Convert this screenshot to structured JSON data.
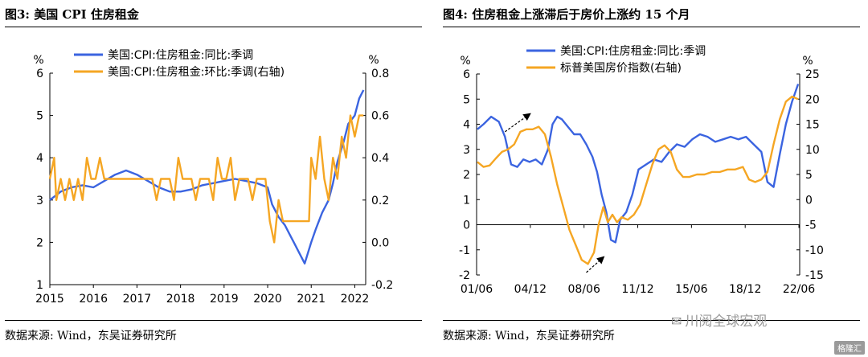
{
  "left": {
    "title": "图3: 美国 CPI 住房租金",
    "source": "数据来源: Wind，东吴证券研究所",
    "chart_data": {
      "type": "line",
      "left_unit": "%",
      "right_unit": "%",
      "x_ticks": [
        "2015",
        "2016",
        "2017",
        "2018",
        "2019",
        "2020",
        "2021",
        "2022"
      ],
      "x_range": [
        2015,
        2022.25
      ],
      "left_ylim": [
        1,
        6
      ],
      "left_ticks": [
        "1",
        "2",
        "3",
        "4",
        "5",
        "6"
      ],
      "right_ylim": [
        -0.2,
        0.8
      ],
      "right_ticks": [
        "-0.2",
        "0.0",
        "0.2",
        "0.4",
        "0.6",
        "0.8"
      ],
      "series": [
        {
          "name": "美国:CPI:住房租金:同比:季调",
          "axis": "left",
          "color": "#3b64e0",
          "x": [
            2015,
            2015.25,
            2015.5,
            2015.75,
            2016,
            2016.25,
            2016.5,
            2016.75,
            2017,
            2017.25,
            2017.5,
            2017.75,
            2018,
            2018.25,
            2018.5,
            2018.75,
            2019,
            2019.25,
            2019.5,
            2019.75,
            2020,
            2020.1,
            2020.25,
            2020.4,
            2020.5,
            2020.6,
            2020.75,
            2020.85,
            2021,
            2021.1,
            2021.25,
            2021.4,
            2021.5,
            2021.6,
            2021.75,
            2021.85,
            2022,
            2022.1,
            2022.2
          ],
          "y": [
            3.0,
            3.2,
            3.3,
            3.35,
            3.3,
            3.45,
            3.6,
            3.7,
            3.6,
            3.45,
            3.3,
            3.2,
            3.2,
            3.25,
            3.35,
            3.4,
            3.45,
            3.5,
            3.45,
            3.4,
            3.3,
            2.9,
            2.6,
            2.4,
            2.2,
            2.0,
            1.7,
            1.5,
            2.0,
            2.3,
            2.7,
            3.0,
            3.4,
            3.9,
            4.4,
            4.8,
            5.0,
            5.4,
            5.6
          ]
        },
        {
          "name": "美国:CPI:住房租金:环比:季调(右轴)",
          "axis": "right",
          "color": "#f5a623",
          "x": [
            2015,
            2015.1,
            2015.15,
            2015.25,
            2015.35,
            2015.45,
            2015.55,
            2015.65,
            2015.75,
            2015.85,
            2015.95,
            2016.05,
            2016.15,
            2016.25,
            2016.35,
            2016.45,
            2016.55,
            2016.65,
            2016.75,
            2016.85,
            2016.95,
            2017.05,
            2017.15,
            2017.25,
            2017.35,
            2017.45,
            2017.55,
            2017.65,
            2017.75,
            2017.85,
            2017.95,
            2018.05,
            2018.15,
            2018.25,
            2018.35,
            2018.45,
            2018.55,
            2018.65,
            2018.75,
            2018.85,
            2018.95,
            2019.05,
            2019.15,
            2019.25,
            2019.35,
            2019.45,
            2019.55,
            2019.65,
            2019.75,
            2019.85,
            2019.95,
            2020.05,
            2020.15,
            2020.25,
            2020.35,
            2020.45,
            2020.55,
            2020.7,
            2020.85,
            2020.95,
            2021.0,
            2021.1,
            2021.2,
            2021.3,
            2021.4,
            2021.5,
            2021.6,
            2021.7,
            2021.8,
            2021.9,
            2022.0,
            2022.1,
            2022.2
          ],
          "y": [
            0.3,
            0.4,
            0.2,
            0.3,
            0.2,
            0.3,
            0.2,
            0.3,
            0.2,
            0.4,
            0.3,
            0.3,
            0.4,
            0.3,
            0.3,
            0.3,
            0.3,
            0.3,
            0.3,
            0.3,
            0.3,
            0.3,
            0.3,
            0.3,
            0.3,
            0.2,
            0.3,
            0.3,
            0.3,
            0.2,
            0.4,
            0.3,
            0.3,
            0.3,
            0.2,
            0.3,
            0.3,
            0.3,
            0.2,
            0.4,
            0.3,
            0.3,
            0.4,
            0.2,
            0.3,
            0.3,
            0.3,
            0.2,
            0.3,
            0.3,
            0.3,
            0.1,
            0.0,
            0.2,
            0.1,
            0.1,
            0.1,
            0.1,
            0.1,
            0.1,
            0.4,
            0.3,
            0.5,
            0.3,
            0.2,
            0.4,
            0.3,
            0.5,
            0.4,
            0.6,
            0.5,
            0.6,
            0.6
          ]
        }
      ]
    }
  },
  "right": {
    "title": "图4: 住房租金上涨滞后于房价上涨约 15 个月",
    "source": "数据来源: Wind，东吴证券研究所",
    "chart_data": {
      "type": "line",
      "left_unit": "%",
      "right_unit": "%",
      "x_ticks": [
        "01/06",
        "04/12",
        "08/06",
        "11/12",
        "15/06",
        "18/12",
        "22/06"
      ],
      "x_tick_pos": [
        2001.45,
        2004.95,
        2008.45,
        2011.95,
        2015.45,
        2018.95,
        2022.45
      ],
      "x_range": [
        2001.45,
        2022.5
      ],
      "left_ylim": [
        -2,
        6
      ],
      "left_ticks": [
        "-2",
        "-1",
        "0",
        "1",
        "2",
        "3",
        "4",
        "5",
        "6"
      ],
      "right_ylim": [
        -15,
        25
      ],
      "right_ticks": [
        "-15",
        "-10",
        "-5",
        "0",
        "5",
        "10",
        "15",
        "20",
        "25"
      ],
      "series": [
        {
          "name": "美国:CPI:住房租金:同比:季调",
          "axis": "left",
          "color": "#3b64e0",
          "x": [
            2001.5,
            2001.9,
            2002.4,
            2002.9,
            2003.3,
            2003.7,
            2004.1,
            2004.5,
            2004.9,
            2005.3,
            2005.7,
            2006.1,
            2006.4,
            2006.7,
            2007.0,
            2007.4,
            2007.8,
            2008.2,
            2008.6,
            2009.0,
            2009.3,
            2009.6,
            2009.9,
            2010.2,
            2010.5,
            2010.8,
            2011.2,
            2011.6,
            2012.0,
            2012.5,
            2013.0,
            2013.5,
            2014.0,
            2014.5,
            2015.0,
            2015.5,
            2016.0,
            2016.5,
            2017.0,
            2017.5,
            2018.0,
            2018.5,
            2019.0,
            2019.5,
            2020.0,
            2020.4,
            2020.8,
            2021.2,
            2021.6,
            2022.0,
            2022.4
          ],
          "y": [
            3.8,
            4.0,
            4.3,
            4.1,
            3.5,
            2.4,
            2.3,
            2.6,
            2.5,
            2.6,
            2.4,
            3.0,
            4.0,
            4.3,
            4.2,
            3.9,
            3.6,
            3.6,
            3.2,
            2.7,
            2.1,
            1.2,
            0.5,
            -0.6,
            -0.7,
            0.2,
            0.5,
            1.2,
            2.2,
            2.4,
            2.6,
            2.5,
            2.9,
            3.2,
            3.1,
            3.4,
            3.6,
            3.5,
            3.3,
            3.4,
            3.5,
            3.4,
            3.5,
            3.2,
            2.9,
            1.7,
            1.5,
            2.8,
            4.0,
            4.9,
            5.6
          ]
        },
        {
          "name": "标普美国房价指数(右轴)",
          "axis": "right",
          "color": "#f5a623",
          "x": [
            2001.5,
            2001.9,
            2002.3,
            2002.7,
            2003.1,
            2003.5,
            2003.9,
            2004.3,
            2004.7,
            2005.1,
            2005.5,
            2005.9,
            2006.3,
            2006.7,
            2007.1,
            2007.5,
            2007.9,
            2008.3,
            2008.7,
            2009.1,
            2009.4,
            2009.7,
            2010.0,
            2010.3,
            2010.6,
            2010.9,
            2011.3,
            2011.7,
            2012.1,
            2012.5,
            2012.9,
            2013.3,
            2013.7,
            2014.1,
            2014.5,
            2014.9,
            2015.3,
            2015.8,
            2016.3,
            2016.8,
            2017.3,
            2017.8,
            2018.3,
            2018.8,
            2019.2,
            2019.6,
            2020.0,
            2020.4,
            2020.8,
            2021.2,
            2021.6,
            2022.0,
            2022.4
          ],
          "y": [
            7.5,
            6.5,
            6.8,
            8.2,
            9.5,
            10.0,
            11.0,
            13.5,
            14.0,
            14.0,
            14.5,
            13.0,
            8.5,
            3.0,
            -1.5,
            -6.0,
            -9.0,
            -12.0,
            -12.8,
            -10.5,
            -5.0,
            -1.5,
            -4.5,
            -3.0,
            -4.5,
            -3.5,
            -4.0,
            -3.0,
            -1.0,
            3.0,
            7.0,
            10.0,
            10.8,
            9.5,
            6.0,
            4.5,
            4.5,
            5.0,
            5.0,
            5.5,
            5.5,
            6.0,
            6.0,
            6.5,
            4.0,
            3.5,
            4.0,
            5.5,
            11.0,
            16.0,
            19.5,
            20.5,
            20.0
          ]
        }
      ],
      "annotations": [
        "arrow near 04/12 peak",
        "arrow near 08/06 trough"
      ]
    }
  },
  "watermark": "川阅全球宏观",
  "brand": "格隆汇"
}
